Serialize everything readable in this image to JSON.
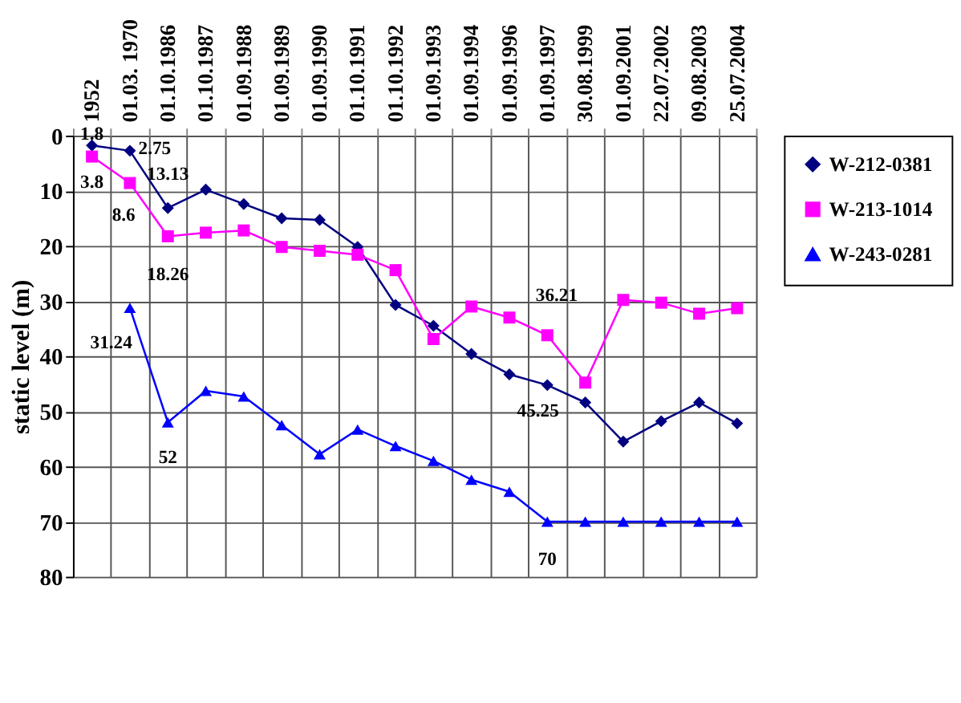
{
  "chart_data": {
    "type": "line",
    "ylabel": "static level (m)",
    "categories": [
      "1952",
      "01.03. 1970",
      "01.10.1986",
      "01.10.1987",
      "01.09.1988",
      "01.09.1989",
      "01.09.1990",
      "01.10.1991",
      "01.10.1992",
      "01.09.1993",
      "01.09.1994",
      "01.09.1996",
      "01.09.1997",
      "30.08.1999",
      "01.09.2001",
      "22.07.2002",
      "09.08.2003",
      "25.07.2004"
    ],
    "series": [
      {
        "name": "W-212-0381",
        "color": "#000080",
        "marker": "diamond",
        "values": [
          1.8,
          2.75,
          13.13,
          9.8,
          12.4,
          15.0,
          15.3,
          20.2,
          30.7,
          34.5,
          39.6,
          43.3,
          45.25,
          48.4,
          55.5,
          51.8,
          48.4,
          52.2
        ]
      },
      {
        "name": "W-213-1014",
        "color": "#ff00ff",
        "marker": "square",
        "values": [
          3.8,
          8.6,
          18.26,
          17.6,
          17.2,
          20.2,
          20.9,
          21.6,
          24.4,
          36.9,
          31.0,
          33.0,
          36.21,
          44.8,
          29.8,
          30.3,
          32.3,
          31.3
        ]
      },
      {
        "name": "W-243-0281",
        "color": "#0000ff",
        "marker": "triangle",
        "values": [
          null,
          31.24,
          52,
          46.3,
          47.3,
          52.5,
          57.8,
          53.3,
          56.3,
          59.0,
          62.4,
          64.6,
          70,
          70,
          70,
          70,
          70,
          70
        ]
      }
    ],
    "ylim": [
      80,
      0
    ],
    "yticks": [
      0,
      10,
      20,
      30,
      40,
      50,
      60,
      70,
      80
    ],
    "grid": true,
    "legend": "right",
    "annotations": [
      {
        "text": "1.8",
        "x": "1952",
        "y": 1.8
      },
      {
        "text": "2.75",
        "x": "01.03. 1970",
        "y": 2.75
      },
      {
        "text": "13.13",
        "x": "01.10.1986",
        "y": 13.13
      },
      {
        "text": "3.8",
        "x": "1952",
        "y": 3.8
      },
      {
        "text": "8.6",
        "x": "01.03. 1970",
        "y": 8.6
      },
      {
        "text": "18.26",
        "x": "01.10.1986",
        "y": 18.26
      },
      {
        "text": "31.24",
        "x": "01.03. 1970",
        "y": 31.24
      },
      {
        "text": "52",
        "x": "01.10.1986",
        "y": 52
      },
      {
        "text": "36.21",
        "x": "01.09.1997",
        "y": 36.21
      },
      {
        "text": "45.25",
        "x": "01.09.1997",
        "y": 45.25
      },
      {
        "text": "70",
        "x": "01.09.1997",
        "y": 70
      }
    ]
  }
}
